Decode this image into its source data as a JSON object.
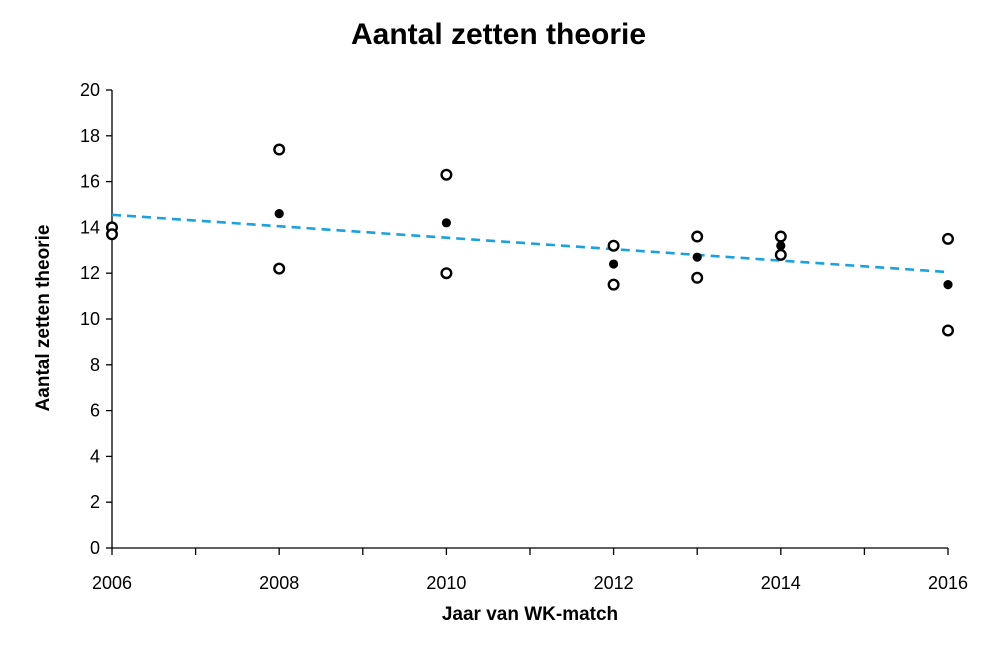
{
  "chart_data": {
    "type": "scatter",
    "title": "Aantal zetten theorie",
    "xlabel": "Jaar van WK-match",
    "ylabel": "Aantal zetten theorie",
    "xlim": [
      2006,
      2016
    ],
    "ylim": [
      0,
      20
    ],
    "x_ticks": [
      2006,
      2008,
      2010,
      2012,
      2014,
      2016
    ],
    "x_minor_ticks": [
      2007,
      2009,
      2011,
      2013,
      2015
    ],
    "y_ticks": [
      0,
      2,
      4,
      6,
      8,
      10,
      12,
      14,
      16,
      18,
      20
    ],
    "grid": false,
    "legend": false,
    "series": [
      {
        "style": "open-circle",
        "color": "#000000",
        "points": [
          {
            "x": 2006,
            "y": 14.0
          },
          {
            "x": 2006,
            "y": 13.7
          },
          {
            "x": 2008,
            "y": 17.4
          },
          {
            "x": 2008,
            "y": 12.2
          },
          {
            "x": 2010,
            "y": 16.3
          },
          {
            "x": 2010,
            "y": 12.0
          },
          {
            "x": 2012,
            "y": 13.2
          },
          {
            "x": 2012,
            "y": 11.5
          },
          {
            "x": 2013,
            "y": 13.6
          },
          {
            "x": 2013,
            "y": 11.8
          },
          {
            "x": 2014,
            "y": 13.6
          },
          {
            "x": 2014,
            "y": 12.8
          },
          {
            "x": 2016,
            "y": 13.5
          },
          {
            "x": 2016,
            "y": 9.5
          }
        ]
      },
      {
        "style": "filled-dot",
        "color": "#000000",
        "points": [
          {
            "x": 2008,
            "y": 14.6
          },
          {
            "x": 2010,
            "y": 14.2
          },
          {
            "x": 2012,
            "y": 12.4
          },
          {
            "x": 2013,
            "y": 12.7
          },
          {
            "x": 2014,
            "y": 13.2
          },
          {
            "x": 2016,
            "y": 11.5
          }
        ]
      }
    ],
    "trendline": {
      "style": "dashed",
      "color": "#1ba1dc",
      "from": {
        "x": 2006,
        "y": 14.55
      },
      "to": {
        "x": 2016,
        "y": 12.05
      }
    }
  }
}
